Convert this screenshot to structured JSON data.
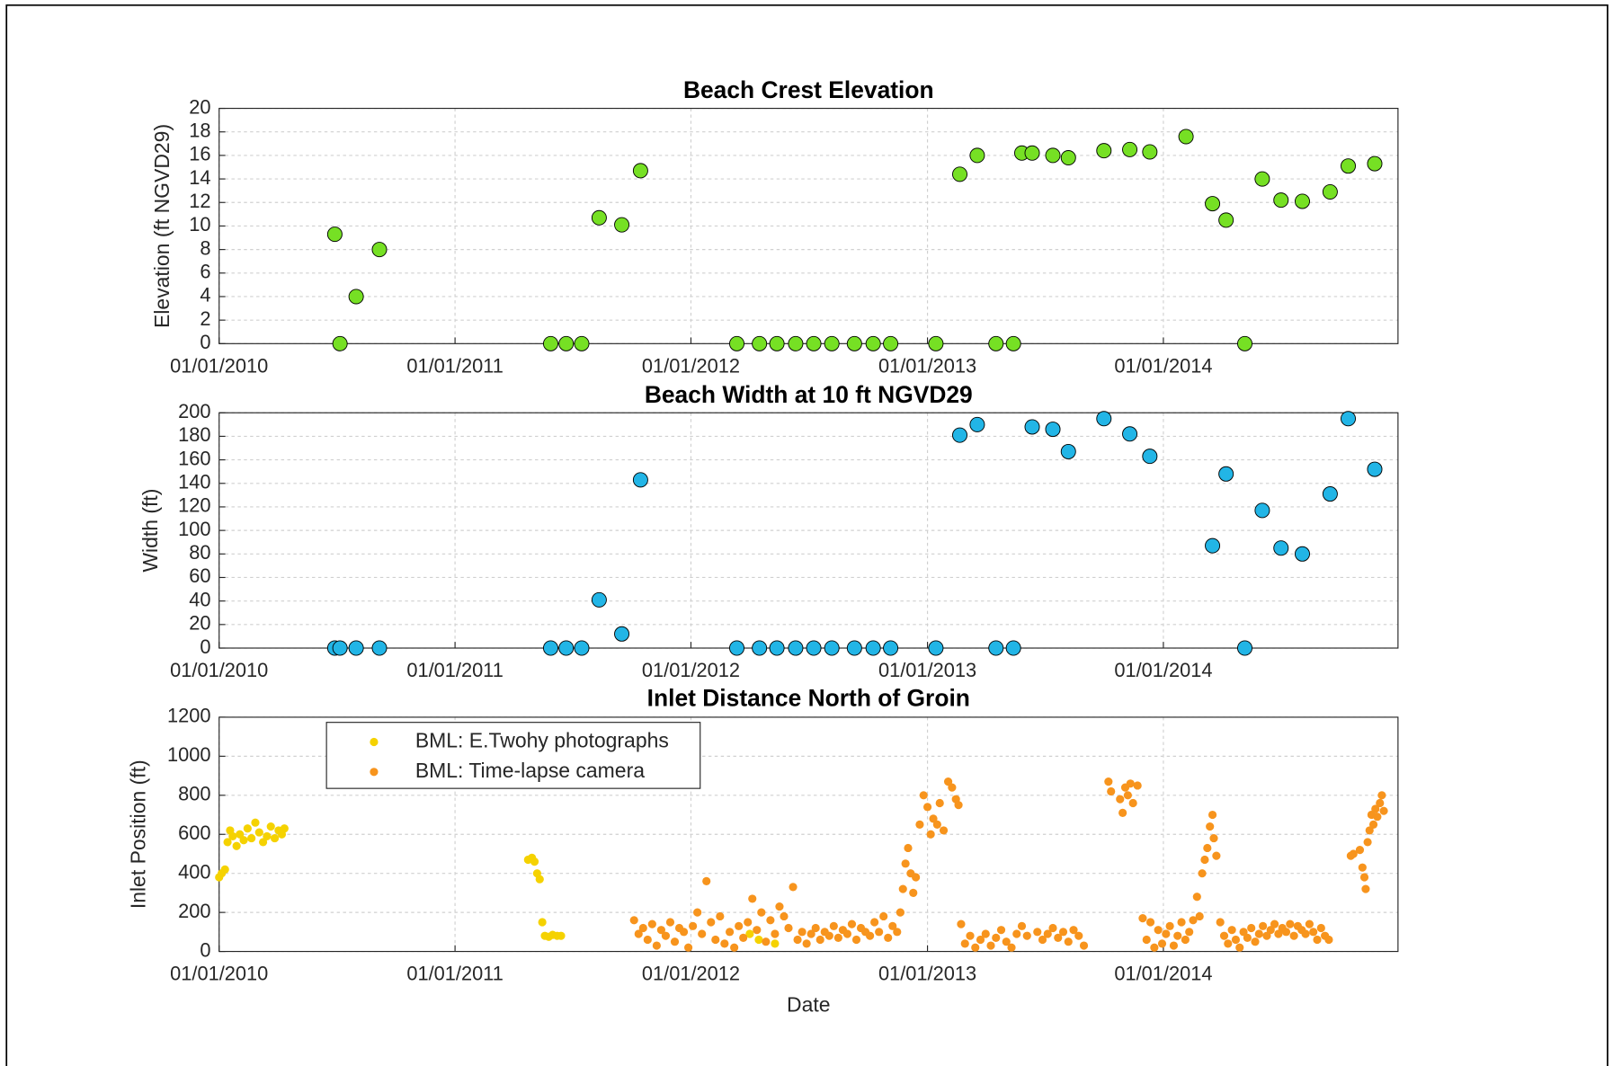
{
  "chart_data": [
    {
      "type": "scatter",
      "title": "Beach Crest Elevation",
      "ylabel": "Elevation (ft NGVD29)",
      "xlim": [
        "01/01/2010",
        "12/30/2014"
      ],
      "xticks": [
        "01/01/2010",
        "01/01/2011",
        "01/01/2012",
        "01/01/2013",
        "01/01/2014"
      ],
      "ylim": [
        0,
        20
      ],
      "yticks": [
        0,
        2,
        4,
        6,
        8,
        10,
        12,
        14,
        16,
        18,
        20
      ],
      "grid": true,
      "color": "#76e024",
      "x": [
        "06/29/2010",
        "07/07/2010",
        "08/01/2010",
        "09/06/2010",
        "05/29/2011",
        "06/22/2011",
        "07/16/2011",
        "08/12/2011",
        "09/16/2011",
        "10/15/2011",
        "03/12/2012",
        "04/16/2012",
        "05/13/2012",
        "06/11/2012",
        "07/09/2012",
        "08/06/2012",
        "09/10/2012",
        "10/09/2012",
        "11/05/2012",
        "01/14/2013",
        "02/20/2013",
        "03/19/2013",
        "04/17/2013",
        "05/14/2013",
        "05/27/2013",
        "06/12/2013",
        "07/14/2013",
        "08/07/2013",
        "10/01/2013",
        "11/10/2013",
        "12/11/2013",
        "02/05/2014",
        "03/18/2014",
        "04/08/2014",
        "05/07/2014",
        "06/03/2014",
        "07/02/2014",
        "08/04/2014",
        "09/16/2014",
        "10/14/2014",
        "11/24/2014"
      ],
      "values": [
        9.3,
        0,
        4,
        8,
        0,
        0,
        0,
        10.7,
        10.1,
        14.7,
        0,
        0,
        0,
        0,
        0,
        0,
        0,
        0,
        0,
        0,
        14.4,
        16,
        0,
        0,
        16.2,
        16.2,
        16,
        15.8,
        16.4,
        16.5,
        16.3,
        17.6,
        11.9,
        10.5,
        0,
        14,
        12.2,
        12.1,
        12.9,
        15.1,
        15.3
      ]
    },
    {
      "type": "scatter",
      "title": "Beach Width at 10 ft NGVD29",
      "ylabel": "Width (ft)",
      "xlim": [
        "01/01/2010",
        "12/30/2014"
      ],
      "xticks": [
        "01/01/2010",
        "01/01/2011",
        "01/01/2012",
        "01/01/2013",
        "01/01/2014"
      ],
      "ylim": [
        0,
        200
      ],
      "yticks": [
        0,
        20,
        40,
        60,
        80,
        100,
        120,
        140,
        160,
        180,
        200
      ],
      "grid": true,
      "color": "#22b5e6",
      "x": [
        "06/29/2010",
        "07/07/2010",
        "08/01/2010",
        "09/06/2010",
        "05/29/2011",
        "06/22/2011",
        "07/16/2011",
        "08/12/2011",
        "09/16/2011",
        "10/15/2011",
        "03/12/2012",
        "04/16/2012",
        "05/13/2012",
        "06/11/2012",
        "07/09/2012",
        "08/06/2012",
        "09/10/2012",
        "10/09/2012",
        "11/05/2012",
        "01/14/2013",
        "02/20/2013",
        "03/19/2013",
        "04/17/2013",
        "05/14/2013",
        "06/12/2013",
        "07/14/2013",
        "08/07/2013",
        "10/01/2013",
        "11/10/2013",
        "12/11/2013",
        "03/18/2014",
        "04/08/2014",
        "05/07/2014",
        "06/03/2014",
        "07/02/2014",
        "08/04/2014",
        "09/16/2014",
        "10/14/2014",
        "11/24/2014"
      ],
      "values": [
        0,
        0,
        0,
        0,
        0,
        0,
        0,
        41,
        12,
        143,
        0,
        0,
        0,
        0,
        0,
        0,
        0,
        0,
        0,
        0,
        181,
        190,
        0,
        0,
        188,
        186,
        167,
        195,
        182,
        163,
        87,
        148,
        0,
        117,
        85,
        80,
        131,
        195,
        152
      ]
    },
    {
      "type": "scatter",
      "title": "Inlet Distance North of Groin",
      "ylabel": "Inlet Position (ft)",
      "xlabel": "Date",
      "xlim": [
        "01/01/2010",
        "12/30/2014"
      ],
      "xticks": [
        "01/01/2010",
        "01/01/2011",
        "01/01/2012",
        "01/01/2013",
        "01/01/2014"
      ],
      "ylim": [
        0,
        1200
      ],
      "yticks": [
        0,
        200,
        400,
        600,
        800,
        1000,
        1200
      ],
      "grid": true,
      "legend": "upper left",
      "series": [
        {
          "name": "BML: E.Twohy photographs",
          "color": "#f5d200",
          "x": [
            "01/01/2010",
            "01/05/2010",
            "01/10/2010",
            "01/14/2010",
            "01/18/2010",
            "01/22/2010",
            "01/28/2010",
            "02/02/2010",
            "02/08/2010",
            "02/14/2010",
            "02/20/2010",
            "02/26/2010",
            "03/04/2010",
            "03/10/2010",
            "03/16/2010",
            "03/22/2010",
            "03/28/2010",
            "04/03/2010",
            "04/08/2010",
            "04/12/2010",
            "04/24/2011",
            "04/30/2011",
            "05/04/2011",
            "05/08/2011",
            "05/12/2011",
            "05/16/2011",
            "05/20/2011",
            "05/26/2011",
            "06/01/2011",
            "06/08/2011",
            "06/14/2011",
            "04/01/2012",
            "04/15/2012",
            "05/10/2012"
          ],
          "values": [
            380,
            400,
            420,
            560,
            620,
            590,
            540,
            600,
            570,
            630,
            580,
            660,
            610,
            560,
            590,
            640,
            580,
            620,
            600,
            630,
            470,
            480,
            460,
            400,
            370,
            150,
            80,
            75,
            85,
            80,
            80,
            90,
            60,
            40
          ]
        },
        {
          "name": "BML: Time-lapse camera",
          "color": "#f7941d",
          "x": [
            "10/05/2011",
            "10/12/2011",
            "10/19/2011",
            "10/26/2011",
            "11/02/2011",
            "11/09/2011",
            "11/16/2011",
            "11/23/2011",
            "11/30/2011",
            "12/07/2011",
            "12/14/2011",
            "12/21/2011",
            "12/28/2011",
            "01/04/2012",
            "01/11/2012",
            "01/18/2012",
            "01/25/2012",
            "02/01/2012",
            "02/08/2012",
            "02/15/2012",
            "02/22/2012",
            "03/01/2012",
            "03/08/2012",
            "03/15/2012",
            "03/22/2012",
            "03/29/2012",
            "04/05/2012",
            "04/12/2012",
            "04/19/2012",
            "04/26/2012",
            "05/03/2012",
            "05/10/2012",
            "05/17/2012",
            "05/24/2012",
            "05/31/2012",
            "06/07/2012",
            "06/14/2012",
            "06/21/2012",
            "06/28/2012",
            "07/05/2012",
            "07/12/2012",
            "07/19/2012",
            "07/26/2012",
            "08/02/2012",
            "08/09/2012",
            "08/16/2012",
            "08/23/2012",
            "08/30/2012",
            "09/06/2012",
            "09/13/2012",
            "09/20/2012",
            "09/27/2012",
            "10/04/2012",
            "10/11/2012",
            "10/18/2012",
            "10/25/2012",
            "11/01/2012",
            "11/08/2012",
            "11/15/2012",
            "11/20/2012",
            "11/24/2012",
            "11/28/2012",
            "12/02/2012",
            "12/06/2012",
            "12/10/2012",
            "12/14/2012",
            "12/20/2012",
            "12/26/2012",
            "01/01/2013",
            "01/06/2013",
            "01/10/2013",
            "01/16/2013",
            "01/20/2013",
            "01/26/2013",
            "02/02/2013",
            "02/08/2013",
            "02/14/2013",
            "02/18/2013",
            "02/22/2013",
            "02/28/2013",
            "03/08/2013",
            "03/16/2013",
            "03/24/2013",
            "04/01/2013",
            "04/09/2013",
            "04/17/2013",
            "04/25/2013",
            "05/03/2013",
            "05/11/2013",
            "05/19/2013",
            "05/27/2013",
            "06/04/2013",
            "06/20/2013",
            "06/28/2013",
            "07/06/2013",
            "07/14/2013",
            "07/22/2013",
            "07/30/2013",
            "08/07/2013",
            "08/15/2013",
            "08/23/2013",
            "08/31/2013",
            "10/08/2013",
            "10/12/2013",
            "10/26/2013",
            "10/30/2013",
            "11/03/2013",
            "11/07/2013",
            "11/11/2013",
            "11/15/2013",
            "11/22/2013",
            "11/30/2013",
            "12/06/2013",
            "12/12/2013",
            "12/18/2013",
            "12/24/2013",
            "12/30/2013",
            "01/05/2014",
            "01/11/2014",
            "01/17/2014",
            "01/23/2014",
            "01/29/2014",
            "02/04/2014",
            "02/10/2014",
            "02/16/2014",
            "02/22/2014",
            "02/26/2014",
            "03/02/2014",
            "03/06/2014",
            "03/10/2014",
            "03/14/2014",
            "03/18/2014",
            "03/20/2014",
            "03/24/2014",
            "03/30/2014",
            "04/05/2014",
            "04/11/2014",
            "04/17/2014",
            "04/23/2014",
            "04/29/2014",
            "05/05/2014",
            "05/11/2014",
            "05/17/2014",
            "05/23/2014",
            "05/29/2014",
            "06/04/2014",
            "06/10/2014",
            "06/16/2014",
            "06/22/2014",
            "06/28/2014",
            "07/04/2014",
            "07/10/2014",
            "07/16/2014",
            "07/22/2014",
            "07/28/2014",
            "08/03/2014",
            "08/09/2014",
            "08/15/2014",
            "08/21/2014",
            "08/27/2014",
            "09/02/2014",
            "09/08/2014",
            "09/14/2014",
            "10/18/2014",
            "10/22/2014",
            "11/01/2014",
            "11/05/2014",
            "11/08/2014",
            "11/10/2014",
            "11/13/2014",
            "11/16/2014",
            "11/19/2014",
            "11/22/2014",
            "11/25/2014",
            "11/28/2014",
            "12/02/2014",
            "12/05/2014",
            "12/08/2014"
          ],
          "values": [
            160,
            90,
            120,
            60,
            140,
            30,
            110,
            80,
            150,
            50,
            120,
            100,
            20,
            130,
            200,
            90,
            360,
            150,
            60,
            180,
            40,
            100,
            20,
            130,
            70,
            150,
            270,
            110,
            200,
            50,
            160,
            90,
            230,
            180,
            120,
            330,
            60,
            100,
            40,
            90,
            120,
            60,
            100,
            80,
            130,
            70,
            110,
            90,
            140,
            60,
            120,
            100,
            80,
            150,
            100,
            180,
            70,
            130,
            100,
            200,
            320,
            450,
            530,
            400,
            300,
            380,
            650,
            800,
            740,
            600,
            680,
            650,
            760,
            620,
            870,
            840,
            780,
            750,
            140,
            40,
            80,
            20,
            60,
            90,
            30,
            70,
            110,
            50,
            20,
            90,
            130,
            80,
            100,
            60,
            90,
            120,
            70,
            100,
            50,
            110,
            80,
            30,
            870,
            820,
            780,
            710,
            840,
            800,
            860,
            760,
            850,
            170,
            60,
            150,
            20,
            110,
            40,
            90,
            130,
            30,
            80,
            150,
            60,
            100,
            160,
            280,
            180,
            400,
            470,
            530,
            640,
            700,
            580,
            490,
            150,
            80,
            40,
            110,
            60,
            20,
            100,
            70,
            120,
            50,
            90,
            130,
            80,
            110,
            140,
            90,
            120,
            100,
            140,
            80,
            130,
            110,
            90,
            140,
            100,
            60,
            120,
            80,
            60,
            490,
            500,
            520,
            430,
            380,
            320,
            560,
            620,
            700,
            650,
            730,
            690,
            760,
            800,
            720
          ]
        }
      ]
    }
  ]
}
